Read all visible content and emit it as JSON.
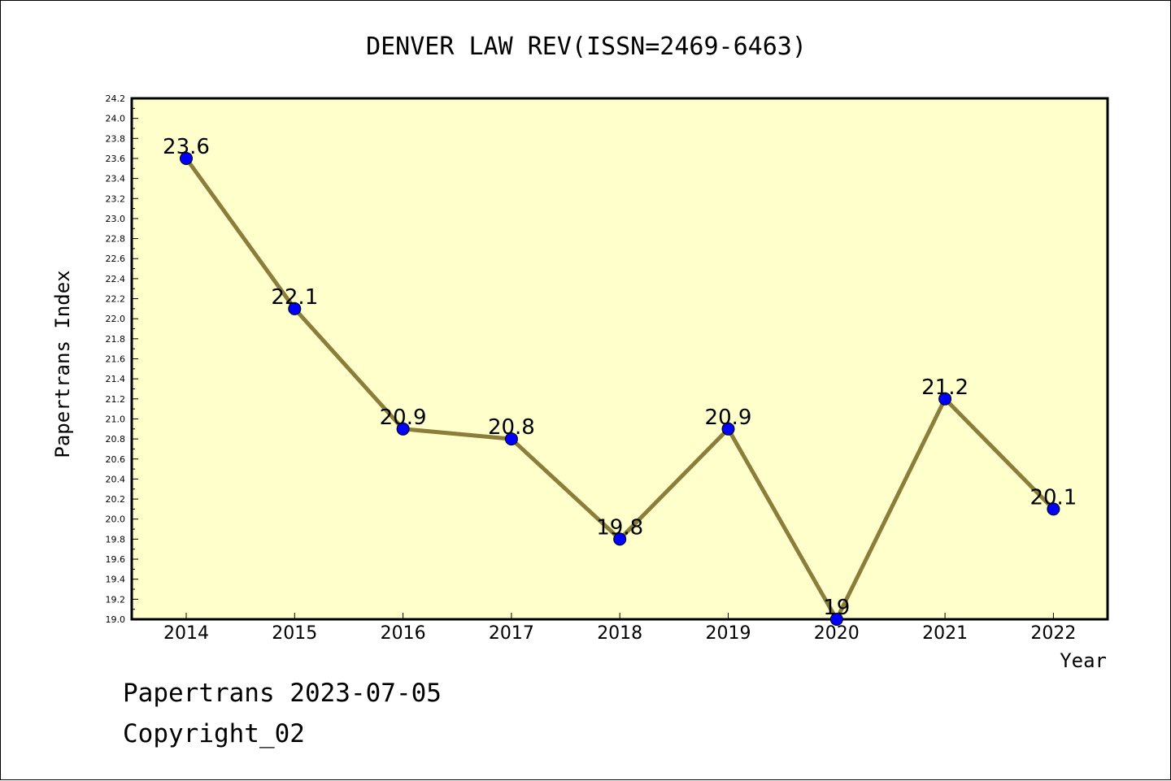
{
  "chart_data": {
    "type": "line",
    "title": "DENVER LAW REV(ISSN=2469-6463)",
    "xlabel": "Year",
    "ylabel": "Papertrans Index",
    "categories": [
      "2014",
      "2015",
      "2016",
      "2017",
      "2018",
      "2019",
      "2020",
      "2021",
      "2022"
    ],
    "series": [
      {
        "values": [
          23.6,
          22.1,
          20.9,
          20.8,
          19.8,
          20.9,
          19.0,
          21.2,
          20.1
        ],
        "data_labels": [
          "23.6",
          "22.1",
          "20.9",
          "20.8",
          "19.8",
          "20.9",
          "19",
          "21.2",
          "20.1"
        ]
      }
    ],
    "ylim": [
      19.0,
      24.2
    ],
    "yticks": [
      "19.0",
      "19.2",
      "19.4",
      "19.6",
      "19.8",
      "20.0",
      "20.2",
      "20.4",
      "20.6",
      "20.8",
      "21.0",
      "21.2",
      "21.4",
      "21.6",
      "21.8",
      "22.0",
      "22.2",
      "22.4",
      "22.6",
      "22.8",
      "23.0",
      "23.2",
      "23.4",
      "23.6",
      "23.8",
      "24.0",
      "24.2"
    ],
    "grid": false,
    "colors": {
      "plot_background": "#FFFFCC",
      "line": "#8B7D3A",
      "marker": "#0000FF"
    }
  },
  "footer": {
    "line1": "Papertrans 2023-07-05",
    "line2": "Copyright_02"
  }
}
